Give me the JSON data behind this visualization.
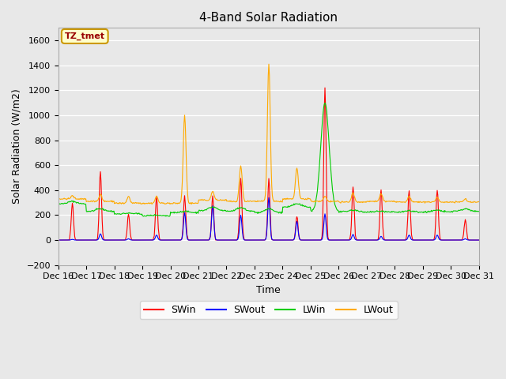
{
  "title": "4-Band Solar Radiation",
  "xlabel": "Time",
  "ylabel": "Solar Radiation (W/m2)",
  "ylim": [
    -200,
    1700
  ],
  "yticks": [
    -200,
    0,
    200,
    400,
    600,
    800,
    1000,
    1200,
    1400,
    1600
  ],
  "bg_color": "#e8e8e8",
  "annotation_text": "TZ_tmet",
  "annotation_color": "#990000",
  "annotation_bg": "#ffffcc",
  "annotation_border": "#cc9900",
  "colors": {
    "SWin": "#ff0000",
    "SWout": "#0000ff",
    "LWin": "#00cc00",
    "LWout": "#ffaa00"
  },
  "n_days": 15,
  "n_per_day": 48,
  "SWin_peaks": [
    300,
    550,
    200,
    350,
    350,
    350,
    490,
    490,
    200,
    1220,
    430,
    400,
    400,
    400,
    170
  ],
  "SWout_peaks": [
    5,
    50,
    10,
    40,
    220,
    275,
    200,
    340,
    150,
    210,
    45,
    30,
    40,
    40,
    10
  ],
  "LWin_peaks": [
    310,
    250,
    215,
    200,
    230,
    265,
    260,
    250,
    290,
    1100,
    240,
    230,
    235,
    240,
    250
  ],
  "LWin_bases": [
    290,
    230,
    210,
    195,
    220,
    235,
    230,
    220,
    265,
    230,
    225,
    225,
    225,
    225,
    230
  ],
  "LWout_peaks": [
    355,
    370,
    350,
    350,
    1000,
    390,
    595,
    1410,
    580,
    350,
    380,
    370,
    350,
    340,
    330
  ],
  "LWout_bases": [
    330,
    310,
    295,
    295,
    295,
    320,
    310,
    310,
    330,
    310,
    305,
    310,
    305,
    305,
    305
  ],
  "xtick_labels": [
    "Dec 16",
    "Dec 17",
    "Dec 18",
    "Dec 19",
    "Dec 20",
    "Dec 21",
    "Dec 22",
    "Dec 23",
    "Dec 24",
    "Dec 25",
    "Dec 26",
    "Dec 27",
    "Dec 28",
    "Dec 29",
    "Dec 30",
    "Dec 31"
  ],
  "legend_labels": [
    "SWin",
    "SWout",
    "LWin",
    "LWout"
  ],
  "legend_colors": [
    "#ff0000",
    "#0000ff",
    "#00cc00",
    "#ffaa00"
  ]
}
